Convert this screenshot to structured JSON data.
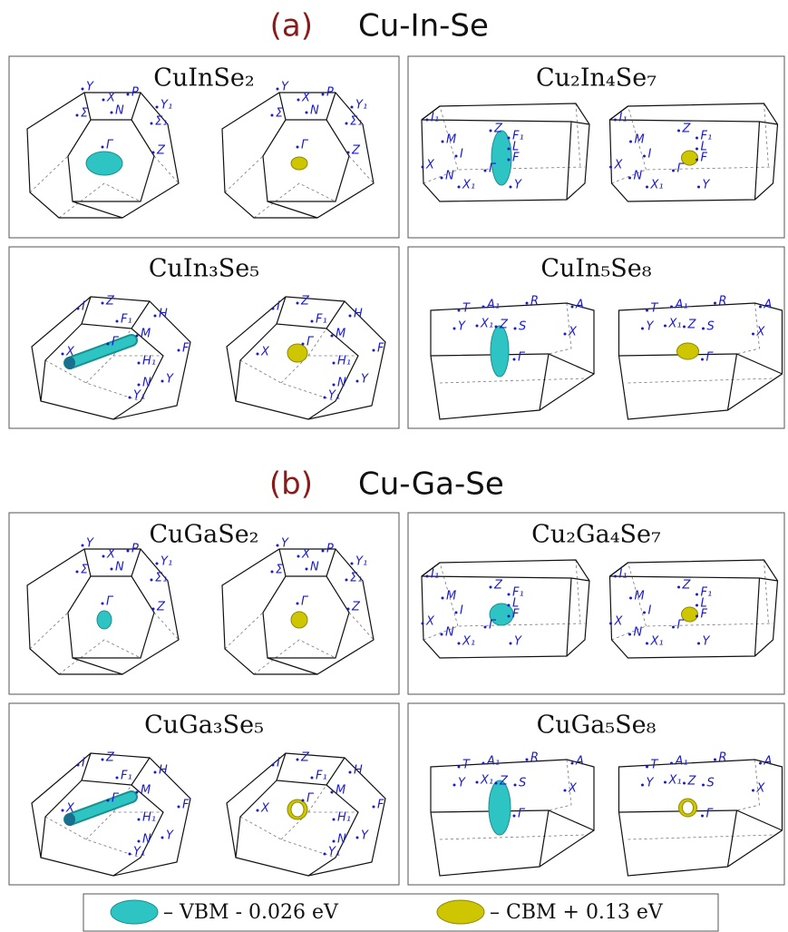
{
  "sections": [
    {
      "label": "(a)",
      "system": "Cu-In-Se",
      "panels": [
        {
          "title": "CuInSe₂",
          "points": [
            "Y",
            "X",
            "P",
            "N",
            "Σ",
            "Y₁",
            "Σ₁",
            "Γ",
            "Z"
          ]
        },
        {
          "title": "Cu₂In₄Se₇",
          "points": [
            "I₁",
            "M",
            "I",
            "X",
            "N",
            "X₁",
            "Z",
            "F₁",
            "L",
            "F",
            "Γ",
            "Y"
          ]
        },
        {
          "title": "CuIn₃Se₅",
          "points": [
            "I",
            "Z",
            "F₁",
            "H",
            "M",
            "Γ",
            "X",
            "H₁",
            "F",
            "N",
            "Y",
            "Y₁"
          ]
        },
        {
          "title": "CuIn₅Se₈",
          "points": [
            "T",
            "A₁",
            "R",
            "A",
            "Y",
            "X₁",
            "Z",
            "S",
            "X",
            "Γ"
          ]
        }
      ]
    },
    {
      "label": "(b)",
      "system": "Cu-Ga-Se",
      "panels": [
        {
          "title": "CuGaSe₂",
          "points": [
            "Y",
            "X",
            "P",
            "N",
            "Σ",
            "Y₁",
            "Σ₁",
            "Γ",
            "Z"
          ]
        },
        {
          "title": "Cu₂Ga₄Se₇",
          "points": [
            "I₁",
            "M",
            "I",
            "X",
            "N",
            "X₁",
            "Z",
            "F₁",
            "L",
            "F",
            "Γ",
            "Y"
          ]
        },
        {
          "title": "CuGa₃Se₅",
          "points": [
            "I",
            "Z",
            "F₁",
            "H",
            "M",
            "Γ",
            "X",
            "H₁",
            "F",
            "N",
            "Y",
            "Y₁"
          ]
        },
        {
          "title": "CuGa₅Se₈",
          "points": [
            "T",
            "A₁",
            "R",
            "A",
            "Y",
            "X₁",
            "Z",
            "S",
            "X",
            "Γ"
          ]
        }
      ]
    }
  ],
  "legend": [
    {
      "text": "– VBM - 0.026 eV"
    },
    {
      "text": "– CBM + 0.13 eV"
    }
  ]
}
